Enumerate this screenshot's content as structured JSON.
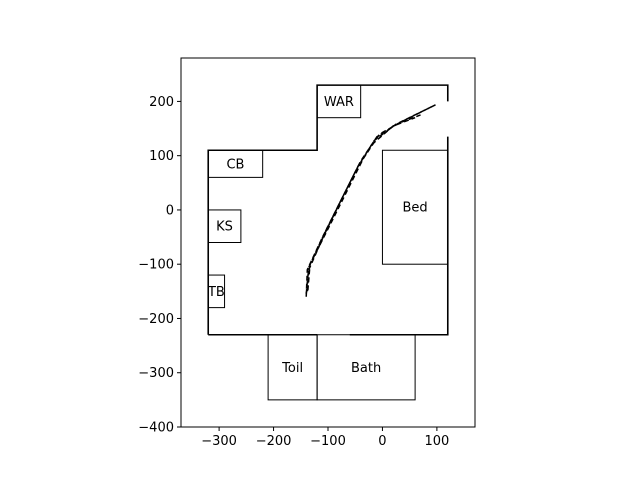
{
  "chart_data": {
    "type": "diagram",
    "title": "",
    "xlabel": "",
    "ylabel": "",
    "xlim": [
      -370,
      170
    ],
    "ylim": [
      -400,
      280
    ],
    "xticks": [
      -300,
      -200,
      -100,
      0,
      100
    ],
    "xtick_labels": [
      "−300",
      "−200",
      "−100",
      "0",
      "100"
    ],
    "yticks": [
      -400,
      -300,
      -200,
      -100,
      0,
      100,
      200
    ],
    "ytick_labels": [
      "−400",
      "−300",
      "−200",
      "−100",
      "0",
      "100",
      "200"
    ],
    "walls": [
      [
        [
          -320,
          -230
        ],
        [
          -320,
          110
        ],
        [
          -120,
          110
        ],
        [
          -120,
          230
        ],
        [
          120,
          230
        ],
        [
          120,
          200
        ]
      ],
      [
        [
          120,
          135
        ],
        [
          120,
          -230
        ],
        [
          -60,
          -230
        ]
      ],
      [
        [
          -120,
          -230
        ],
        [
          -320,
          -230
        ]
      ]
    ],
    "rooms": [
      {
        "label": "WAR",
        "x0": -120,
        "y0": 170,
        "x1": -40,
        "y1": 230
      },
      {
        "label": "CB",
        "x0": -320,
        "y0": 60,
        "x1": -220,
        "y1": 110
      },
      {
        "label": "KS",
        "x0": -320,
        "y0": -60,
        "x1": -260,
        "y1": 0
      },
      {
        "label": "TB",
        "x0": -320,
        "y0": -180,
        "x1": -290,
        "y1": -120
      },
      {
        "label": "Bed",
        "x0": 0,
        "y0": -100,
        "x1": 120,
        "y1": 110
      },
      {
        "label": "Toil",
        "x0": -210,
        "y0": -350,
        "x1": -120,
        "y1": -230
      },
      {
        "label": "Bath",
        "x0": -120,
        "y0": -350,
        "x1": 60,
        "y1": -230
      }
    ],
    "paths": [
      [
        [
          -140,
          -160
        ],
        [
          -138,
          -110
        ],
        [
          -110,
          -50
        ],
        [
          -80,
          10
        ],
        [
          -50,
          70
        ],
        [
          -20,
          120
        ],
        [
          20,
          155
        ],
        [
          60,
          170
        ]
      ],
      [
        [
          -138,
          -150
        ],
        [
          -135,
          -105
        ],
        [
          -105,
          -40
        ],
        [
          -70,
          30
        ],
        [
          -40,
          90
        ],
        [
          -10,
          135
        ],
        [
          30,
          160
        ],
        [
          70,
          175
        ]
      ],
      [
        [
          -140,
          -155
        ],
        [
          -136,
          -112
        ],
        [
          -108,
          -48
        ],
        [
          -75,
          20
        ],
        [
          -45,
          80
        ],
        [
          -15,
          128
        ],
        [
          25,
          158
        ],
        [
          90,
          190
        ]
      ],
      [
        [
          -137,
          -148
        ],
        [
          -133,
          -100
        ],
        [
          -100,
          -35
        ],
        [
          -65,
          35
        ],
        [
          -35,
          95
        ],
        [
          -5,
          140
        ],
        [
          40,
          165
        ],
        [
          100,
          195
        ]
      ]
    ]
  }
}
